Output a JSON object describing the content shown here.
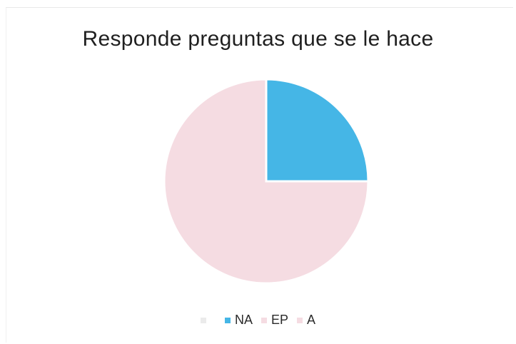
{
  "chart_data": {
    "type": "pie",
    "title": "Responde preguntas que se le hace",
    "slices": [
      {
        "name": "",
        "value": 0,
        "color": "#ebebeb"
      },
      {
        "name": "NA",
        "value": 25,
        "color": "#45b6e6"
      },
      {
        "name": "EP",
        "value": 0,
        "color": "#f5dce2"
      },
      {
        "name": "A",
        "value": 75,
        "color": "#f5dce2"
      }
    ],
    "legend_position": "bottom"
  }
}
